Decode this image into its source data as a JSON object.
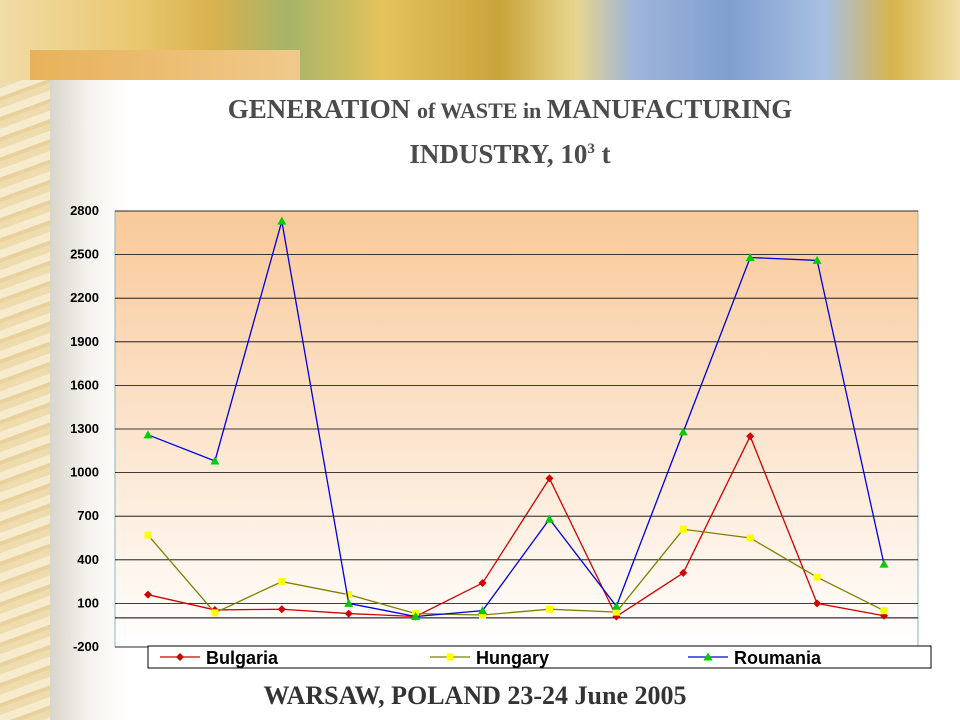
{
  "title": {
    "part1": "GENERATION ",
    "part2": "of WASTE  in ",
    "part3": "MANUFACTURING",
    "line2_main": "INDUSTRY, 10",
    "line2_sup": "3",
    "line2_end": " t"
  },
  "footer": "WARSAW, POLAND 23-24 June 2005",
  "colors": {
    "Bulgaria": "#d40000",
    "Hungary": "#808000",
    "Roumania": "#0000e0",
    "hungary_marker": "#ffff00",
    "roumania_marker": "#00cc00"
  },
  "chart_data": {
    "type": "line",
    "categories": [
      "",
      "",
      "",
      "",
      "",
      "",
      "",
      "",
      "",
      "",
      "",
      ""
    ],
    "ylim": [
      -200,
      2800
    ],
    "yticks": [
      "2800",
      "2500",
      "2200",
      "1900",
      "1600",
      "1300",
      "1000",
      "700",
      "400",
      "100",
      "-200"
    ],
    "grid": true,
    "legend_position": "bottom",
    "series": [
      {
        "name": "Bulgaria",
        "values": [
          160,
          55,
          60,
          30,
          10,
          240,
          960,
          10,
          310,
          1250,
          100,
          15
        ]
      },
      {
        "name": "Hungary",
        "values": [
          570,
          35,
          250,
          160,
          30,
          20,
          60,
          40,
          610,
          550,
          280,
          50
        ]
      },
      {
        "name": "Roumania",
        "values": [
          1260,
          1080,
          2730,
          100,
          10,
          50,
          680,
          80,
          1280,
          2480,
          2460,
          370
        ]
      }
    ]
  }
}
